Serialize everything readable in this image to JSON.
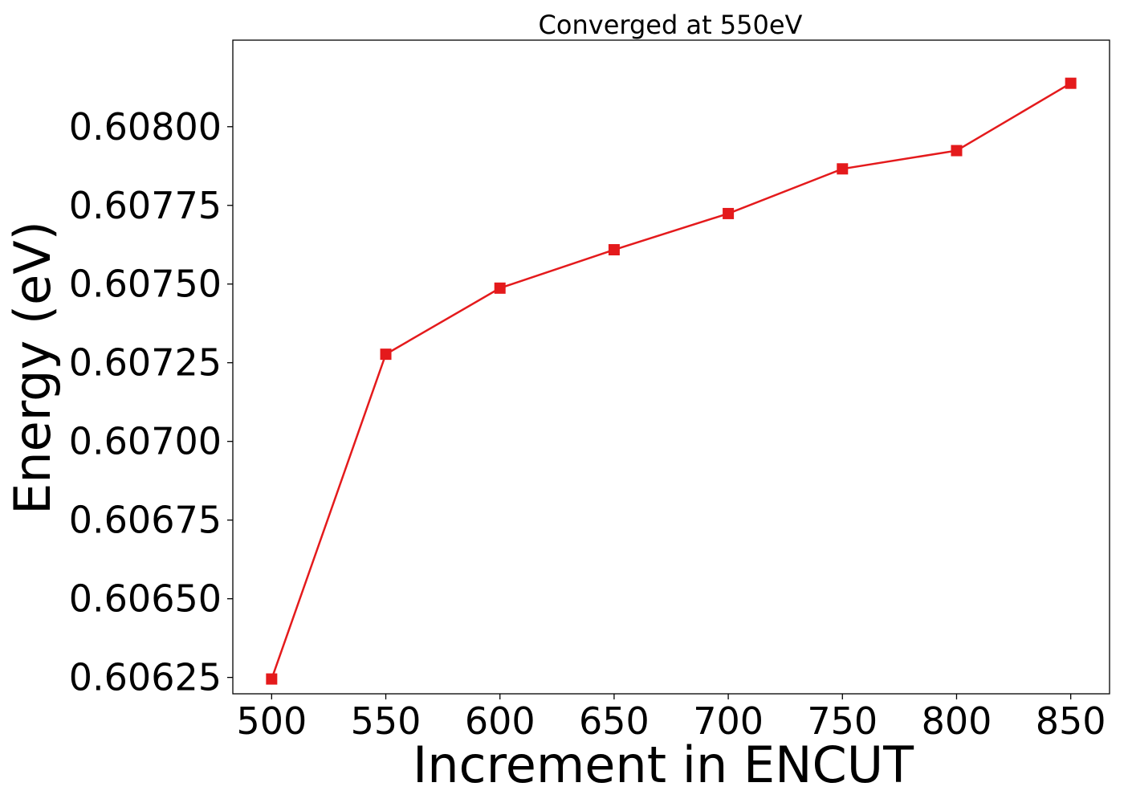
{
  "chart_data": {
    "type": "line",
    "title": "Converged at 550eV",
    "xlabel": "Increment in ENCUT",
    "ylabel": "Energy (eV)",
    "x": [
      500,
      550,
      600,
      650,
      700,
      750,
      800,
      850
    ],
    "series": [
      {
        "values": [
          0.606245,
          0.607277,
          0.607487,
          0.607609,
          0.607724,
          0.607866,
          0.607924,
          0.608138
        ],
        "color": "#e41a1c",
        "marker": "square"
      }
    ],
    "xticks": [
      500,
      550,
      600,
      650,
      700,
      750,
      800,
      850
    ],
    "xtick_labels": [
      "500",
      "550",
      "600",
      "650",
      "700",
      "750",
      "800",
      "850"
    ],
    "yticks": [
      0.60625,
      0.6065,
      0.60675,
      0.607,
      0.60725,
      0.6075,
      0.60775,
      0.608
    ],
    "ytick_labels": [
      "0.60625",
      "0.60650",
      "0.60675",
      "0.60700",
      "0.60725",
      "0.60750",
      "0.60775",
      "0.60800"
    ],
    "xlim": [
      483,
      867
    ],
    "ylim": [
      0.606198,
      0.608275
    ],
    "grid": false,
    "legend": false
  }
}
